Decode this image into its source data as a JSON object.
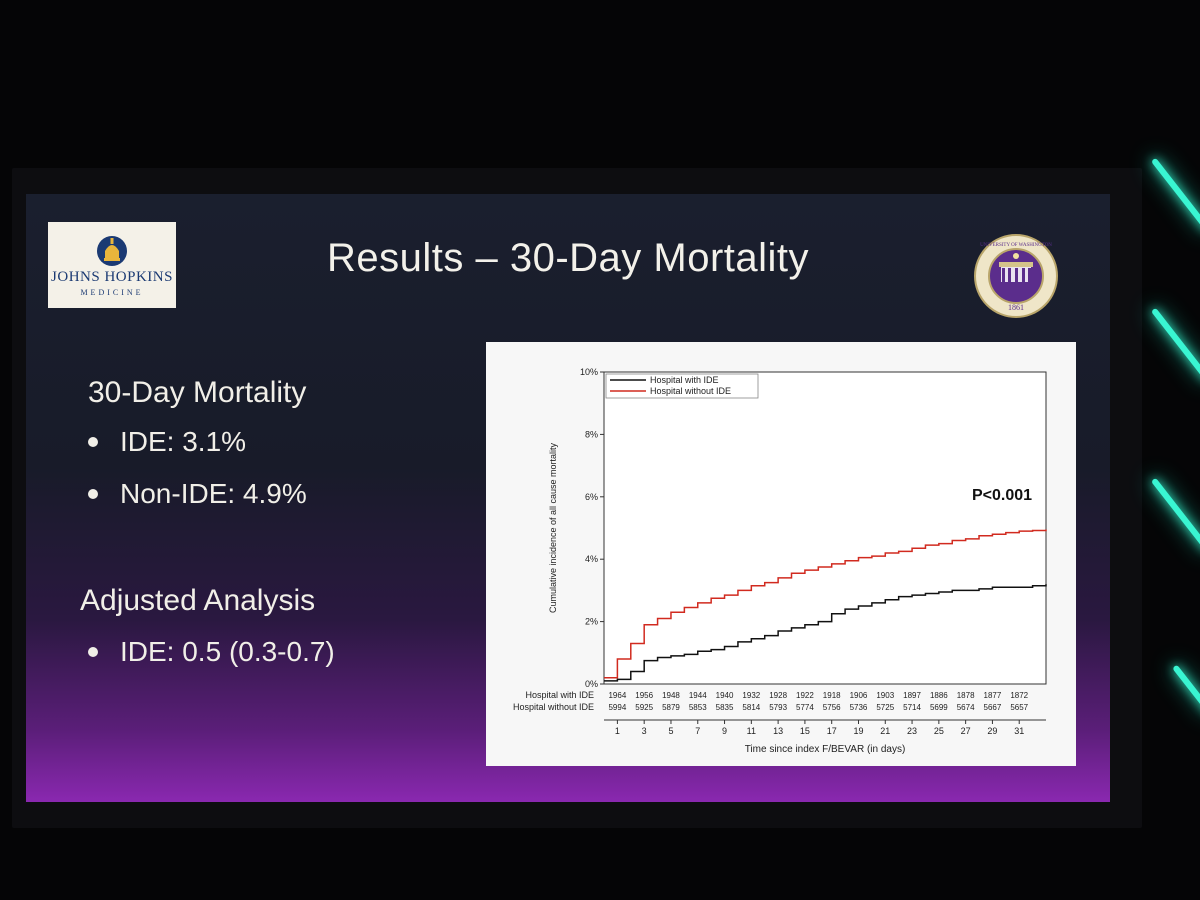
{
  "slide": {
    "title": "Results – 30-Day Mortality",
    "logo_left": {
      "name": "JOHNS HOPKINS",
      "subtitle": "MEDICINE"
    },
    "logo_right": {
      "seal_text": "UNIVERSITY OF WASHINGTON",
      "year": "1861"
    },
    "left_panel": {
      "heading1": "30-Day Mortality",
      "bullets1": [
        "IDE: 3.1%",
        "Non-IDE: 4.9%"
      ],
      "heading2": "Adjusted Analysis",
      "bullets2": [
        "IDE: 0.5 (0.3-0.7)"
      ]
    }
  },
  "chart_data": {
    "type": "line",
    "title": "",
    "xlabel": "Time since index F/BEVAR (in days)",
    "ylabel": "Cumulative incidence of all cause mortality",
    "xlim": [
      0,
      33
    ],
    "ylim": [
      0,
      10
    ],
    "y_ticks": [
      0,
      2,
      4,
      6,
      8,
      10
    ],
    "y_tick_labels": [
      "0%",
      "2%",
      "4%",
      "6%",
      "8%",
      "10%"
    ],
    "x_ticks": [
      1,
      3,
      5,
      7,
      9,
      11,
      13,
      15,
      17,
      19,
      21,
      23,
      25,
      27,
      29,
      31
    ],
    "x_tick_labels": [
      "1",
      "3",
      "5",
      "7",
      "9",
      "11",
      "13",
      "15",
      "17",
      "19",
      "21",
      "23",
      "25",
      "27",
      "29",
      "31"
    ],
    "legend": [
      "Hospital with IDE",
      "Hospital without IDE"
    ],
    "annotation": "P<0.001",
    "series": [
      {
        "name": "Hospital with IDE",
        "color": "#111111",
        "x": [
          0,
          1,
          2,
          3,
          4,
          5,
          6,
          7,
          8,
          9,
          10,
          11,
          12,
          13,
          14,
          15,
          16,
          17,
          18,
          19,
          20,
          21,
          22,
          23,
          24,
          25,
          26,
          27,
          28,
          29,
          30,
          31,
          32,
          33
        ],
        "y": [
          0.1,
          0.15,
          0.4,
          0.75,
          0.85,
          0.9,
          0.95,
          1.05,
          1.1,
          1.2,
          1.35,
          1.45,
          1.55,
          1.7,
          1.8,
          1.9,
          2.0,
          2.25,
          2.4,
          2.5,
          2.6,
          2.7,
          2.8,
          2.85,
          2.9,
          2.95,
          3.0,
          3.0,
          3.05,
          3.1,
          3.1,
          3.1,
          3.15,
          3.2
        ]
      },
      {
        "name": "Hospital without IDE",
        "color": "#d12a1f",
        "x": [
          0,
          1,
          2,
          3,
          4,
          5,
          6,
          7,
          8,
          9,
          10,
          11,
          12,
          13,
          14,
          15,
          16,
          17,
          18,
          19,
          20,
          21,
          22,
          23,
          24,
          25,
          26,
          27,
          28,
          29,
          30,
          31,
          32,
          33
        ],
        "y": [
          0.2,
          0.8,
          1.3,
          1.9,
          2.1,
          2.3,
          2.45,
          2.6,
          2.75,
          2.85,
          3.0,
          3.15,
          3.25,
          3.4,
          3.55,
          3.65,
          3.75,
          3.85,
          3.95,
          4.05,
          4.1,
          4.2,
          4.25,
          4.35,
          4.45,
          4.5,
          4.6,
          4.65,
          4.75,
          4.8,
          4.85,
          4.9,
          4.92,
          4.95
        ]
      }
    ],
    "risk_table": {
      "rows": [
        {
          "label": "Hospital with IDE",
          "values": [
            "1964",
            "1956",
            "1948",
            "1944",
            "1940",
            "1932",
            "1928",
            "1922",
            "1918",
            "1906",
            "1903",
            "1897",
            "1886",
            "1878",
            "1877",
            "1872"
          ]
        },
        {
          "label": "Hospital without IDE",
          "values": [
            "5994",
            "5925",
            "5879",
            "5853",
            "5835",
            "5814",
            "5793",
            "5774",
            "5756",
            "5736",
            "5725",
            "5714",
            "5699",
            "5674",
            "5667",
            "5657"
          ]
        }
      ]
    }
  }
}
